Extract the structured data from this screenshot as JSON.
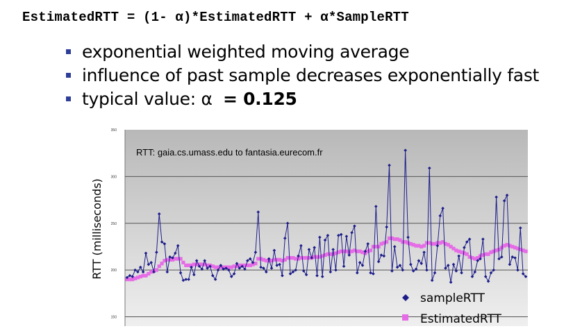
{
  "formula": {
    "text": "EstimatedRTT = (1- α)*EstimatedRTT + α*SampleRTT"
  },
  "bullets": [
    "exponential weighted moving average",
    "influence of past sample decreases exponentially fast"
  ],
  "typical": {
    "label": "typical value: α",
    "value": "= 0.125"
  },
  "colors": {
    "plot_bg_top": "#b8b8b8",
    "plot_bg_bottom": "#efefef",
    "sample": "#1c1c8a",
    "estimated": "#e66be6",
    "bullet": "#2c3e98"
  },
  "chart_data": {
    "type": "line",
    "title": "RTT: gaia.cs.umass.edu to fantasia.eurecom.fr",
    "ylabel": "RTT (milliseconds)",
    "xlabel": "",
    "ylim": [
      140,
      350
    ],
    "yticks": [
      "350",
      "300",
      "250",
      "200",
      "150"
    ],
    "grid": true,
    "legend_position": "bottom-right",
    "series": [
      {
        "name": "sampleRTT",
        "marker": "diamond",
        "values": [
          192,
          194,
          193,
          200,
          198,
          203,
          198,
          218,
          206,
          208,
          198,
          219,
          260,
          230,
          228,
          198,
          214,
          213,
          218,
          226,
          197,
          189,
          190,
          190,
          203,
          195,
          210,
          204,
          201,
          210,
          202,
          204,
          194,
          190,
          200,
          205,
          201,
          202,
          200,
          193,
          196,
          207,
          202,
          204,
          201,
          210,
          212,
          208,
          219,
          262,
          203,
          202,
          198,
          212,
          202,
          221,
          205,
          206,
          194,
          234,
          250,
          196,
          198,
          200,
          215,
          226,
          199,
          195,
          222,
          213,
          224,
          194,
          235,
          193,
          232,
          237,
          198,
          222,
          200,
          237,
          238,
          204,
          236,
          216,
          240,
          247,
          197,
          208,
          205,
          220,
          228,
          197,
          196,
          268,
          209,
          216,
          215,
          246,
          312,
          199,
          225,
          203,
          205,
          200,
          328,
          235,
          206,
          199,
          201,
          210,
          207,
          219,
          200,
          309,
          189,
          197,
          226,
          258,
          266,
          202,
          205,
          187,
          206,
          199,
          215,
          197,
          224,
          230,
          233,
          193,
          198,
          210,
          212,
          233,
          193,
          188,
          197,
          200,
          278,
          212,
          214,
          274,
          280,
          206,
          214,
          213,
          200,
          245,
          196,
          193
        ]
      },
      {
        "name": "EstimatedRTT",
        "marker": "square",
        "values": [
          190,
          190,
          190,
          191,
          192,
          193,
          194,
          194,
          196,
          198,
          199,
          200,
          204,
          207,
          210,
          211,
          211,
          211,
          212,
          212,
          212,
          208,
          205,
          205,
          205,
          206,
          206,
          206,
          206,
          206,
          205,
          205,
          204,
          203,
          203,
          203,
          203,
          203,
          203,
          203,
          204,
          204,
          205,
          205,
          205,
          205,
          205,
          206,
          207,
          212,
          212,
          211,
          210,
          210,
          210,
          211,
          211,
          211,
          210,
          211,
          213,
          213,
          213,
          212,
          212,
          213,
          213,
          213,
          213,
          213,
          214,
          214,
          214,
          215,
          216,
          217,
          217,
          217,
          218,
          219,
          220,
          220,
          220,
          219,
          220,
          221,
          220,
          220,
          219,
          218,
          220,
          221,
          225,
          225,
          225,
          228,
          229,
          230,
          234,
          234,
          233,
          233,
          232,
          230,
          230,
          229,
          228,
          227,
          226,
          226,
          225,
          226,
          229,
          229,
          228,
          228,
          229,
          229,
          230,
          228,
          227,
          225,
          223,
          221,
          220,
          219,
          218,
          217,
          214,
          213,
          212,
          213,
          215,
          216,
          217,
          217,
          219,
          220,
          221,
          222,
          224,
          226,
          227,
          226,
          225,
          224,
          223,
          222,
          221,
          220
        ]
      }
    ]
  }
}
